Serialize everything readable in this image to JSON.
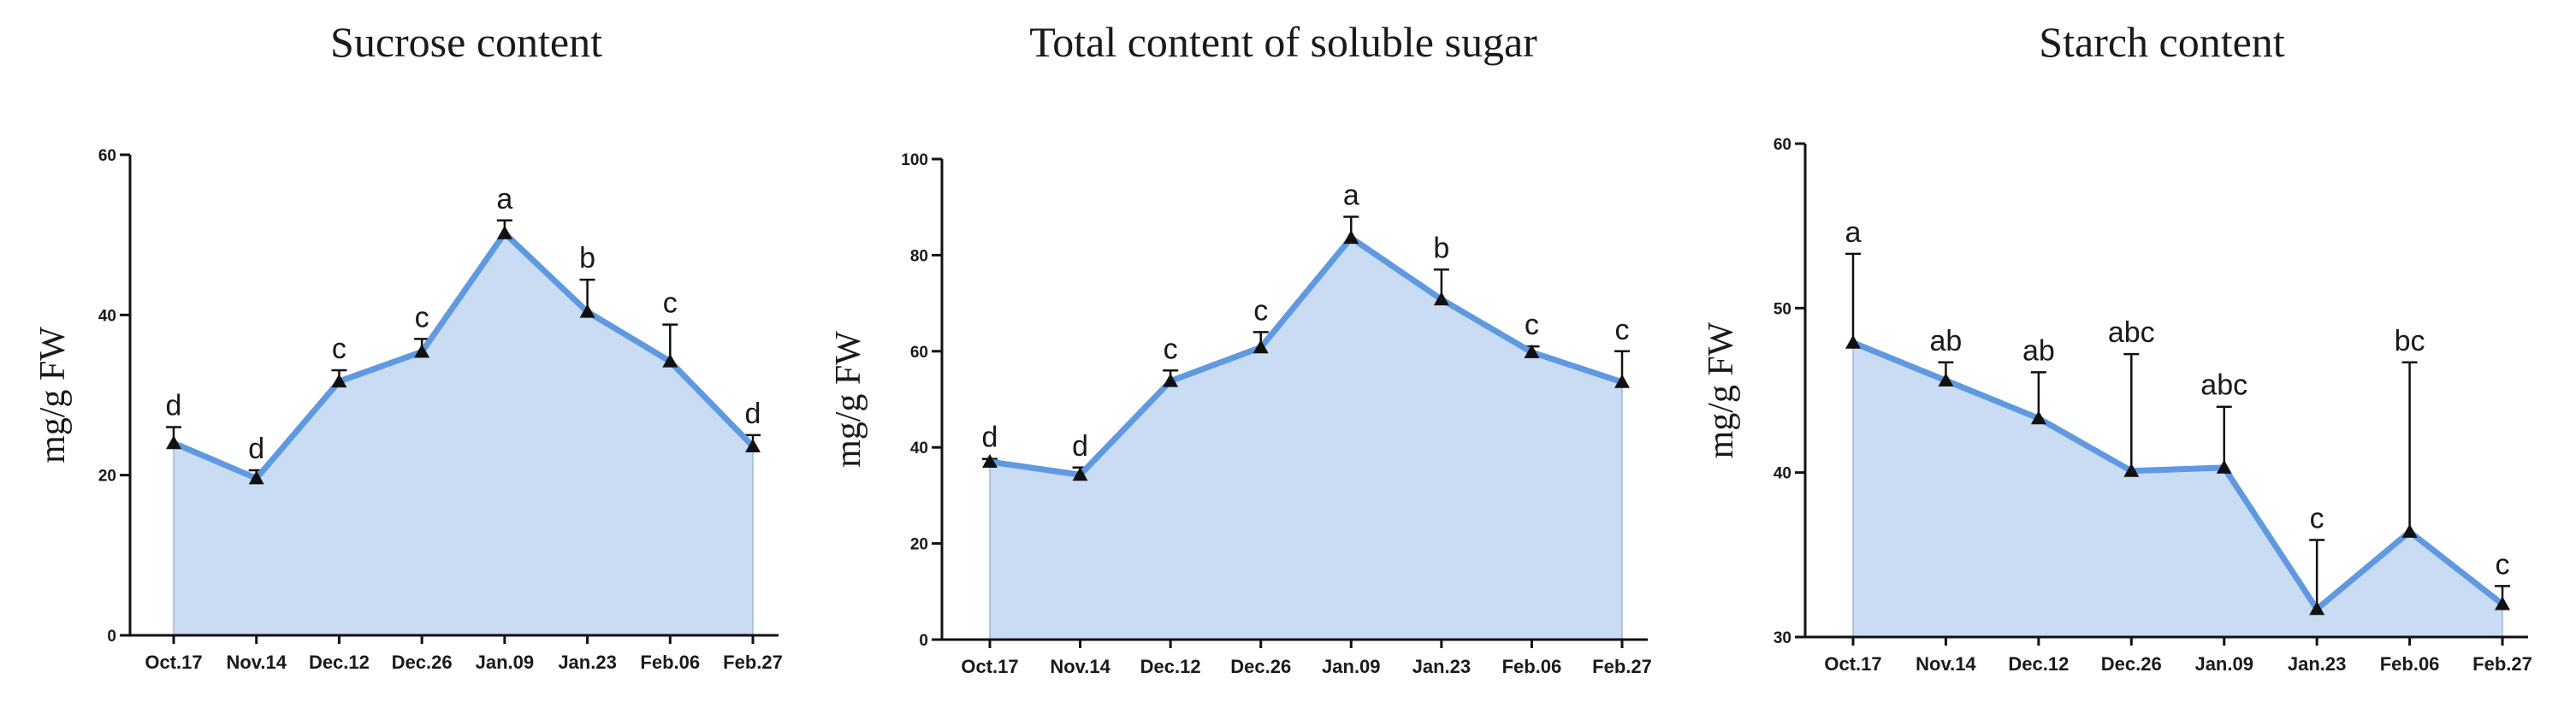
{
  "chart_data": [
    {
      "type": "area",
      "title": "Sucrose content",
      "ylabel": "mg/g FW",
      "xlabel": "",
      "categories": [
        "Oct.17",
        "Nov.14",
        "Dec.12",
        "Dec.26",
        "Jan.09",
        "Jan.23",
        "Feb.06",
        "Feb.27"
      ],
      "values": [
        24.0,
        19.6,
        31.7,
        35.4,
        50.2,
        40.4,
        34.2,
        23.6
      ],
      "error_upper": [
        26.0,
        20.6,
        33.1,
        37.0,
        51.8,
        44.4,
        38.8,
        25.0
      ],
      "significance": [
        "d",
        "d",
        "c",
        "c",
        "a",
        "b",
        "c",
        "d"
      ],
      "ylim": [
        0,
        60
      ],
      "yticks": [
        0,
        20,
        40,
        60
      ],
      "grid": false,
      "colors": {
        "fill": "#c9dcf4",
        "line": "#5f99e0",
        "marker": "#111111"
      }
    },
    {
      "type": "area",
      "title": "Total content of soluble sugar",
      "ylabel": "mg/g FW",
      "xlabel": "",
      "categories": [
        "Oct.17",
        "Nov.14",
        "Dec.12",
        "Dec.26",
        "Jan.09",
        "Jan.23",
        "Feb.06",
        "Feb.27"
      ],
      "values": [
        37.0,
        34.3,
        53.8,
        60.8,
        83.6,
        70.8,
        59.8,
        53.6
      ],
      "error_upper": [
        37.6,
        35.8,
        56.0,
        64.0,
        88.0,
        77.0,
        61.0,
        60.0
      ],
      "significance": [
        "d",
        "d",
        "c",
        "c",
        "a",
        "b",
        "c",
        "c"
      ],
      "ylim": [
        0,
        100
      ],
      "yticks": [
        0,
        20,
        40,
        60,
        80,
        100
      ],
      "grid": false,
      "colors": {
        "fill": "#c9dcf4",
        "line": "#5f99e0",
        "marker": "#111111"
      }
    },
    {
      "type": "area",
      "title": "Starch content",
      "ylabel": "mg/g FW",
      "xlabel": "",
      "categories": [
        "Oct.17",
        "Nov.14",
        "Dec.12",
        "Dec.26",
        "Jan.09",
        "Jan.23",
        "Feb.06",
        "Feb.27"
      ],
      "values": [
        47.9,
        45.6,
        43.3,
        40.1,
        40.3,
        31.7,
        36.4,
        32.0
      ],
      "error_upper": [
        53.3,
        46.7,
        46.1,
        47.2,
        44.0,
        35.9,
        46.7,
        33.1
      ],
      "significance": [
        "a",
        "ab",
        "ab",
        "abc",
        "abc",
        "c",
        "bc",
        "c"
      ],
      "ylim": [
        30,
        60
      ],
      "yticks": [
        30,
        40,
        50,
        60
      ],
      "grid": false,
      "colors": {
        "fill": "#c9dcf4",
        "line": "#5f99e0",
        "marker": "#111111"
      }
    }
  ]
}
